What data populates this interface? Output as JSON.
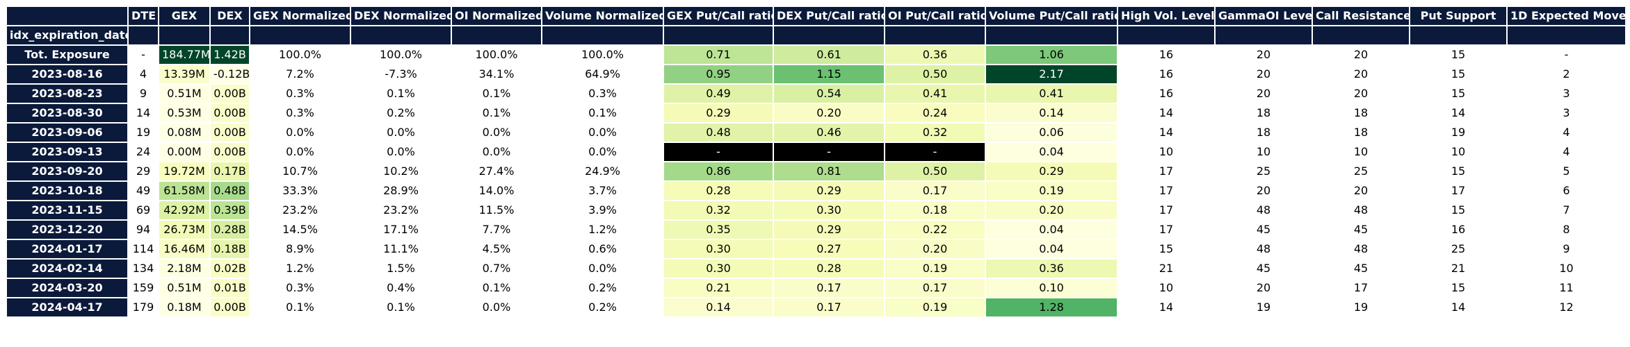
{
  "chart_data": {
    "type": "table",
    "index_name": "idx_expiration_date",
    "columns": [
      "DTE",
      "GEX",
      "DEX",
      "GEX Normalized",
      "DEX Normalized",
      "OI Normalized",
      "Volume Normalized",
      "GEX Put/Call ratio",
      "DEX Put/Call ratio",
      "OI Put/Call ratio",
      "Volume Put/Call ratio",
      "High Vol. Level",
      "GammaOI Level",
      "Call Resistance",
      "Put Support",
      "1D Expected Move"
    ],
    "rows": [
      {
        "label": "Tot. Exposure",
        "cells": [
          "-",
          "184.77M",
          "1.42B",
          "100.0%",
          "100.0%",
          "100.0%",
          "100.0%",
          "0.71",
          "0.61",
          "0.36",
          "1.06",
          "16",
          "20",
          "20",
          "15",
          "-"
        ],
        "values": [
          null,
          184.77,
          1.42,
          null,
          null,
          null,
          null,
          0.71,
          0.61,
          0.36,
          1.06,
          null,
          null,
          null,
          null,
          null
        ]
      },
      {
        "label": "2023-08-16",
        "cells": [
          "4",
          "13.39M",
          "-0.12B",
          "7.2%",
          "-7.3%",
          "34.1%",
          "64.9%",
          "0.95",
          "1.15",
          "0.50",
          "2.17",
          "16",
          "20",
          "20",
          "15",
          "2"
        ],
        "values": [
          null,
          13.39,
          -0.12,
          null,
          null,
          null,
          null,
          0.95,
          1.15,
          0.5,
          2.17,
          null,
          null,
          null,
          null,
          null
        ]
      },
      {
        "label": "2023-08-23",
        "cells": [
          "9",
          "0.51M",
          "0.00B",
          "0.3%",
          "0.1%",
          "0.1%",
          "0.3%",
          "0.49",
          "0.54",
          "0.41",
          "0.41",
          "16",
          "20",
          "20",
          "15",
          "3"
        ],
        "values": [
          null,
          0.51,
          0.0,
          null,
          null,
          null,
          null,
          0.49,
          0.54,
          0.41,
          0.41,
          null,
          null,
          null,
          null,
          null
        ]
      },
      {
        "label": "2023-08-30",
        "cells": [
          "14",
          "0.53M",
          "0.00B",
          "0.3%",
          "0.2%",
          "0.1%",
          "0.1%",
          "0.29",
          "0.20",
          "0.24",
          "0.14",
          "14",
          "18",
          "18",
          "14",
          "3"
        ],
        "values": [
          null,
          0.53,
          0.0,
          null,
          null,
          null,
          null,
          0.29,
          0.2,
          0.24,
          0.14,
          null,
          null,
          null,
          null,
          null
        ]
      },
      {
        "label": "2023-09-06",
        "cells": [
          "19",
          "0.08M",
          "0.00B",
          "0.0%",
          "0.0%",
          "0.0%",
          "0.0%",
          "0.48",
          "0.46",
          "0.32",
          "0.06",
          "14",
          "18",
          "18",
          "19",
          "4"
        ],
        "values": [
          null,
          0.08,
          0.0,
          null,
          null,
          null,
          null,
          0.48,
          0.46,
          0.32,
          0.06,
          null,
          null,
          null,
          null,
          null
        ]
      },
      {
        "label": "2023-09-13",
        "cells": [
          "24",
          "0.00M",
          "0.00B",
          "0.0%",
          "0.0%",
          "0.0%",
          "0.0%",
          "-",
          "-",
          "-",
          "0.04",
          "10",
          "10",
          "10",
          "10",
          "4"
        ],
        "values": [
          null,
          0.0,
          0.0,
          null,
          null,
          null,
          null,
          null,
          null,
          null,
          0.04,
          null,
          null,
          null,
          null,
          null
        ]
      },
      {
        "label": "2023-09-20",
        "cells": [
          "29",
          "19.72M",
          "0.17B",
          "10.7%",
          "10.2%",
          "27.4%",
          "24.9%",
          "0.86",
          "0.81",
          "0.50",
          "0.29",
          "17",
          "25",
          "25",
          "15",
          "5"
        ],
        "values": [
          null,
          19.72,
          0.17,
          null,
          null,
          null,
          null,
          0.86,
          0.81,
          0.5,
          0.29,
          null,
          null,
          null,
          null,
          null
        ]
      },
      {
        "label": "2023-10-18",
        "cells": [
          "49",
          "61.58M",
          "0.48B",
          "33.3%",
          "28.9%",
          "14.0%",
          "3.7%",
          "0.28",
          "0.29",
          "0.17",
          "0.19",
          "17",
          "20",
          "20",
          "17",
          "6"
        ],
        "values": [
          null,
          61.58,
          0.48,
          null,
          null,
          null,
          null,
          0.28,
          0.29,
          0.17,
          0.19,
          null,
          null,
          null,
          null,
          null
        ]
      },
      {
        "label": "2023-11-15",
        "cells": [
          "69",
          "42.92M",
          "0.39B",
          "23.2%",
          "23.2%",
          "11.5%",
          "3.9%",
          "0.32",
          "0.30",
          "0.18",
          "0.20",
          "17",
          "48",
          "48",
          "15",
          "7"
        ],
        "values": [
          null,
          42.92,
          0.39,
          null,
          null,
          null,
          null,
          0.32,
          0.3,
          0.18,
          0.2,
          null,
          null,
          null,
          null,
          null
        ]
      },
      {
        "label": "2023-12-20",
        "cells": [
          "94",
          "26.73M",
          "0.28B",
          "14.5%",
          "17.1%",
          "7.7%",
          "1.2%",
          "0.35",
          "0.29",
          "0.22",
          "0.04",
          "17",
          "45",
          "45",
          "16",
          "8"
        ],
        "values": [
          null,
          26.73,
          0.28,
          null,
          null,
          null,
          null,
          0.35,
          0.29,
          0.22,
          0.04,
          null,
          null,
          null,
          null,
          null
        ]
      },
      {
        "label": "2024-01-17",
        "cells": [
          "114",
          "16.46M",
          "0.18B",
          "8.9%",
          "11.1%",
          "4.5%",
          "0.6%",
          "0.30",
          "0.27",
          "0.20",
          "0.04",
          "15",
          "48",
          "48",
          "25",
          "9"
        ],
        "values": [
          null,
          16.46,
          0.18,
          null,
          null,
          null,
          null,
          0.3,
          0.27,
          0.2,
          0.04,
          null,
          null,
          null,
          null,
          null
        ]
      },
      {
        "label": "2024-02-14",
        "cells": [
          "134",
          "2.18M",
          "0.02B",
          "1.2%",
          "1.5%",
          "0.7%",
          "0.0%",
          "0.30",
          "0.28",
          "0.19",
          "0.36",
          "21",
          "45",
          "45",
          "21",
          "10"
        ],
        "values": [
          null,
          2.18,
          0.02,
          null,
          null,
          null,
          null,
          0.3,
          0.28,
          0.19,
          0.36,
          null,
          null,
          null,
          null,
          null
        ]
      },
      {
        "label": "2024-03-20",
        "cells": [
          "159",
          "0.51M",
          "0.01B",
          "0.3%",
          "0.4%",
          "0.1%",
          "0.2%",
          "0.21",
          "0.17",
          "0.17",
          "0.10",
          "10",
          "20",
          "17",
          "15",
          "11"
        ],
        "values": [
          null,
          0.51,
          0.01,
          null,
          null,
          null,
          null,
          0.21,
          0.17,
          0.17,
          0.1,
          null,
          null,
          null,
          null,
          null
        ]
      },
      {
        "label": "2024-04-17",
        "cells": [
          "179",
          "0.18M",
          "0.00B",
          "0.1%",
          "0.1%",
          "0.0%",
          "0.2%",
          "0.14",
          "0.17",
          "0.19",
          "1.28",
          "14",
          "19",
          "19",
          "14",
          "12"
        ],
        "values": [
          null,
          0.18,
          0.0,
          null,
          null,
          null,
          null,
          0.14,
          0.17,
          0.19,
          1.28,
          null,
          null,
          null,
          null,
          null
        ]
      }
    ],
    "column_widths": [
      175,
      44,
      74,
      57,
      145,
      145,
      130,
      175,
      158,
      160,
      145,
      190,
      140,
      140,
      140,
      140,
      171
    ],
    "colors": {
      "header_bg": "#0b1a3a",
      "header_text": "#ffffff",
      "plain_cell_bg": "#ffffff",
      "missing_bg": "#000000",
      "missing_text": "#ffffff",
      "colormap": "YlGn",
      "colormap_stops": [
        "#ffffe5",
        "#f7fcb9",
        "#d9f0a3",
        "#addd8e",
        "#78c679",
        "#41ab5d",
        "#238443",
        "#006837",
        "#004529"
      ]
    },
    "color_scale": {
      "GEX": [
        0,
        184.77
      ],
      "DEX": [
        -0.12,
        1.42
      ],
      "GEX Put/Call ratio": [
        0,
        2.17
      ],
      "DEX Put/Call ratio": [
        0,
        2.17
      ],
      "OI Put/Call ratio": [
        0,
        2.17
      ],
      "Volume Put/Call ratio": [
        0,
        2.17
      ]
    }
  }
}
